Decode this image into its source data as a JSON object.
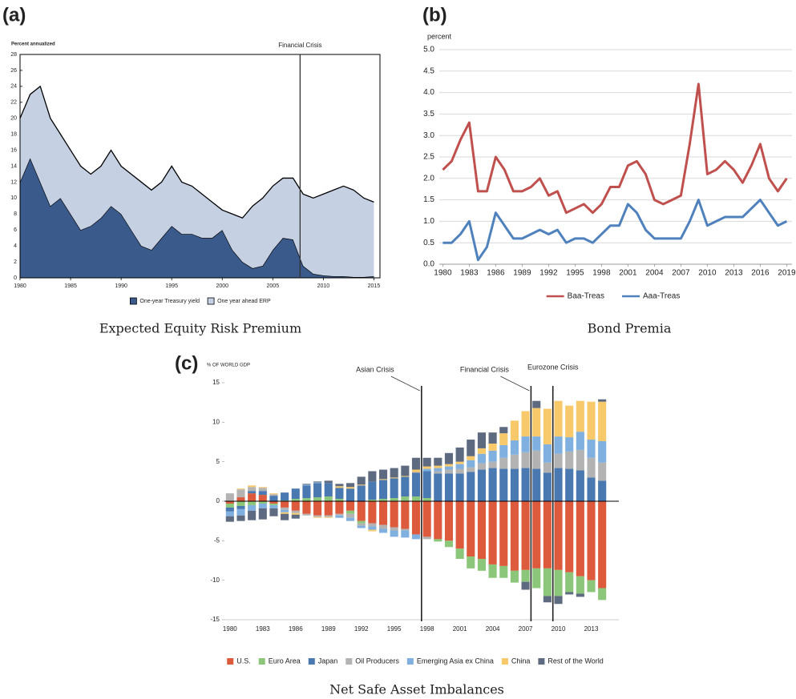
{
  "chart_data": [
    {
      "type": "area",
      "stacked": true,
      "panel": "(a)",
      "caption": "Expected Equity Risk Premium",
      "ylabel": "Percent annualized",
      "x": [
        1980,
        1981,
        1982,
        1983,
        1984,
        1985,
        1986,
        1987,
        1988,
        1989,
        1990,
        1991,
        1992,
        1993,
        1994,
        1995,
        1996,
        1997,
        1998,
        1999,
        2000,
        2001,
        2002,
        2003,
        2004,
        2005,
        2006,
        2007,
        2008,
        2009,
        2010,
        2011,
        2012,
        2013,
        2014,
        2015
      ],
      "series": [
        {
          "name": "One-year Treasury yield",
          "color": "#3a5a8c",
          "values": [
            12,
            15,
            12,
            9,
            10,
            8,
            6,
            6.5,
            7.5,
            9,
            8,
            6,
            4,
            3.5,
            5,
            6.5,
            5.5,
            5.5,
            5,
            5,
            6,
            3.5,
            2,
            1.2,
            1.5,
            3.5,
            5,
            4.8,
            1.5,
            0.5,
            0.3,
            0.2,
            0.2,
            0.1,
            0.1,
            0.2
          ]
        },
        {
          "name": "One year ahead ERP",
          "color": "#c5d0e3",
          "values": [
            8,
            8,
            12,
            11,
            8,
            8,
            8,
            6.5,
            6.5,
            7,
            6,
            7,
            8,
            7.5,
            7,
            7.5,
            6.5,
            6,
            5.5,
            4.5,
            2.5,
            4.5,
            5.5,
            7.8,
            8.5,
            8,
            7.5,
            7.7,
            9,
            9.5,
            10.2,
            10.8,
            11.3,
            10.9,
            9.9,
            9.3
          ]
        }
      ],
      "xlim": [
        1980,
        2015.6
      ],
      "xticks": [
        1980,
        1985,
        1990,
        1995,
        2000,
        2005,
        2010,
        2015
      ],
      "ylim": [
        0,
        28
      ],
      "yticks": [
        0,
        2,
        4,
        6,
        8,
        10,
        12,
        14,
        16,
        18,
        20,
        22,
        24,
        26,
        28
      ],
      "annotations": [
        {
          "text": "Financial Crisis",
          "x": 2007.7
        }
      ],
      "legend": "bottom"
    },
    {
      "type": "line",
      "panel": "(b)",
      "caption": "Bond Premia",
      "ylabel": "percent",
      "x": [
        1980,
        1981,
        1982,
        1983,
        1984,
        1985,
        1986,
        1987,
        1988,
        1989,
        1990,
        1991,
        1992,
        1993,
        1994,
        1995,
        1996,
        1997,
        1998,
        1999,
        2000,
        2001,
        2002,
        2003,
        2004,
        2005,
        2006,
        2007,
        2008,
        2009,
        2010,
        2011,
        2012,
        2013,
        2014,
        2015,
        2016,
        2017,
        2018,
        2019
      ],
      "series": [
        {
          "name": "Baa-Treas",
          "color": "#c0504d",
          "values": [
            2.2,
            2.4,
            2.9,
            3.3,
            1.7,
            1.7,
            2.5,
            2.2,
            1.7,
            1.7,
            1.8,
            2.0,
            1.6,
            1.7,
            1.2,
            1.3,
            1.4,
            1.2,
            1.4,
            1.8,
            1.8,
            2.3,
            2.4,
            2.1,
            1.5,
            1.4,
            1.5,
            1.6,
            2.8,
            4.2,
            2.1,
            2.2,
            2.4,
            2.2,
            1.9,
            2.3,
            2.8,
            2.0,
            1.7,
            2.0
          ]
        },
        {
          "name": "Aaa-Treas",
          "color": "#4f81bd",
          "values": [
            0.5,
            0.5,
            0.7,
            1.0,
            0.1,
            0.4,
            1.2,
            0.9,
            0.6,
            0.6,
            0.7,
            0.8,
            0.7,
            0.8,
            0.5,
            0.6,
            0.6,
            0.5,
            0.7,
            0.9,
            0.9,
            1.4,
            1.2,
            0.8,
            0.6,
            0.6,
            0.6,
            0.6,
            1.0,
            1.5,
            0.9,
            1.0,
            1.1,
            1.1,
            1.1,
            1.3,
            1.5,
            1.2,
            0.9,
            1.0
          ]
        }
      ],
      "xlim": [
        1979.6,
        2019.6
      ],
      "xticks": [
        1980,
        1983,
        1986,
        1989,
        1992,
        1995,
        1998,
        2001,
        2004,
        2007,
        2010,
        2013,
        2016,
        2019
      ],
      "ylim": [
        0,
        5
      ],
      "yticks": [
        {
          "value": 0,
          "label": "0.0"
        },
        0.5,
        {
          "value": 1,
          "label": "1.0"
        },
        1.5,
        {
          "value": 2,
          "label": "2.0"
        },
        2.5,
        {
          "value": 3,
          "label": "3.0"
        },
        3.5,
        {
          "value": 4,
          "label": "4.0"
        },
        4.5,
        {
          "value": 5,
          "label": "5.0"
        }
      ],
      "grid": true,
      "legend": "bottom"
    },
    {
      "type": "bar",
      "stacked": true,
      "panel": "(c)",
      "caption": "Net Safe Asset Imbalances",
      "ylabel": "% OF WORLD GDP",
      "categories": [
        1980,
        null,
        null,
        1983,
        null,
        null,
        1986,
        null,
        null,
        1989,
        null,
        null,
        1992,
        null,
        null,
        1995,
        null,
        null,
        1998,
        null,
        null,
        2001,
        null,
        null,
        2004,
        null,
        null,
        2007,
        null,
        null,
        2010,
        null,
        null,
        2013,
        null
      ],
      "series": [
        {
          "name": "U.S.",
          "color": "#dd5a3c",
          "values": [
            -0.3,
            0.5,
            1.0,
            0.8,
            -0.3,
            -0.8,
            -1.2,
            -1.6,
            -1.8,
            -1.8,
            -1.6,
            -1.2,
            -2.5,
            -2.8,
            -3.0,
            -3.3,
            -3.5,
            -4.2,
            -4.5,
            -4.8,
            -5.0,
            -6.0,
            -7.0,
            -7.3,
            -8.0,
            -8.2,
            -8.8,
            -8.7,
            -8.5,
            -8.5,
            -8.7,
            -9.0,
            -9.5,
            -10.0,
            -11.0
          ]
        },
        {
          "name": "Euro Area",
          "color": "#8cc67a",
          "values": [
            -0.5,
            -0.6,
            -0.5,
            -0.3,
            -0.2,
            0.1,
            0.3,
            0.4,
            0.5,
            0.6,
            0.3,
            -0.4,
            -0.3,
            0.2,
            0.3,
            0.4,
            0.6,
            0.6,
            0.4,
            -0.3,
            -0.8,
            -1.3,
            -1.5,
            -1.5,
            -1.7,
            -1.5,
            -1.5,
            -1.5,
            -2.5,
            -3.5,
            -3.3,
            -2.5,
            -2.2,
            -1.5,
            -1.5
          ]
        },
        {
          "name": "Japan",
          "color": "#4a78b0",
          "values": [
            -0.5,
            -0.4,
            0.3,
            0.5,
            0.7,
            1.0,
            1.3,
            1.6,
            1.8,
            1.7,
            1.4,
            1.6,
            2.0,
            2.3,
            2.4,
            2.5,
            2.5,
            3.0,
            3.4,
            3.5,
            3.5,
            3.5,
            3.7,
            4.0,
            4.2,
            4.1,
            4.1,
            4.2,
            4.1,
            3.6,
            4.2,
            4.1,
            3.9,
            3.0,
            2.6
          ]
        },
        {
          "name": "Oil Producers",
          "color": "#b3b3b3",
          "values": [
            1.0,
            1.0,
            0.5,
            0.4,
            0.2,
            -0.3,
            -0.3,
            -0.2,
            -0.2,
            -0.2,
            -0.2,
            -0.5,
            -0.3,
            -0.4,
            -0.5,
            -0.4,
            -0.2,
            0.1,
            -0.3,
            0.3,
            0.5,
            0.6,
            0.6,
            0.8,
            0.8,
            1.4,
            1.8,
            2.0,
            2.3,
            1.3,
            1.8,
            2.2,
            2.6,
            2.5,
            2.3
          ]
        },
        {
          "name": "Emerging Asia ex China",
          "color": "#7fb0e0",
          "values": [
            -0.6,
            -0.8,
            -0.7,
            -0.6,
            -0.4,
            -0.3,
            0.0,
            0.1,
            0.1,
            0.0,
            -0.3,
            -0.4,
            -0.3,
            -0.4,
            -0.5,
            -0.8,
            -0.9,
            -0.6,
            0.3,
            0.4,
            0.4,
            0.6,
            0.9,
            1.2,
            1.4,
            1.6,
            1.8,
            2.0,
            1.8,
            2.3,
            2.2,
            1.8,
            2.3,
            2.3,
            2.7
          ]
        },
        {
          "name": "China",
          "color": "#f7c96b",
          "values": [
            0,
            0.1,
            0.2,
            0.1,
            0.1,
            -0.2,
            -0.2,
            0,
            -0.1,
            -0.1,
            0.2,
            0.2,
            0.1,
            -0.2,
            0.1,
            0.1,
            0.1,
            0.3,
            0.3,
            0.3,
            0.3,
            0.3,
            0.5,
            0.7,
            0.9,
            1.5,
            2.5,
            3.2,
            3.6,
            4.5,
            4.5,
            4.0,
            3.9,
            4.8,
            5.0
          ]
        },
        {
          "name": "Rest of the World",
          "color": "#5e6a80",
          "values": [
            -0.7,
            -0.7,
            -1.2,
            -1.4,
            -1.0,
            -0.8,
            -0.5,
            0.1,
            0.1,
            0.3,
            0.3,
            0.5,
            1.0,
            1.3,
            1.2,
            1.2,
            1.3,
            1.5,
            1.1,
            1.0,
            1.4,
            1.8,
            2.1,
            2.0,
            1.4,
            0.8,
            0.0,
            -1.0,
            0.9,
            -0.8,
            -1.0,
            -0.3,
            -0.4,
            0.0,
            0.3
          ]
        }
      ],
      "ylim": [
        -15,
        15
      ],
      "yticks": [
        -15,
        -10,
        -5,
        0,
        5,
        10,
        15
      ],
      "annotations": [
        {
          "text": "Asian Crisis",
          "x": 1997.5
        },
        {
          "text": "Financial Crisis",
          "x": 2007.5
        },
        {
          "text": "Eurozone Crisis",
          "x": 2009.5
        }
      ],
      "legend": "bottom"
    }
  ]
}
